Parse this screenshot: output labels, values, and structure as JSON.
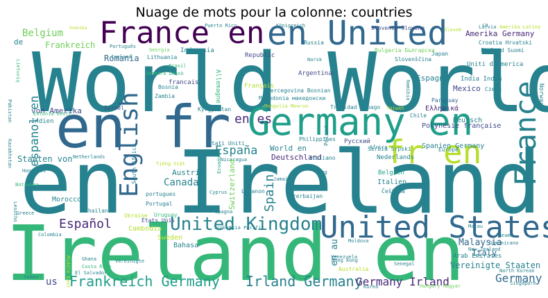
{
  "chart_data": {
    "type": "wordcloud",
    "title": "Nuage de mots pour la colonne: countries",
    "colors": [
      "#440154",
      "#482878",
      "#3e4989",
      "#31688e",
      "#26828e",
      "#1f9e89",
      "#35b779",
      "#6ece58",
      "#b5de2b",
      "#fde725"
    ],
    "words": [
      {
        "text": "World World",
        "rank": 1
      },
      {
        "text": "en Ireland",
        "rank": 2
      },
      {
        "text": "Ireland en",
        "rank": 3
      },
      {
        "text": "en fr",
        "rank": 4
      },
      {
        "text": "France en",
        "rank": 5
      },
      {
        "text": "en United",
        "rank": 6
      },
      {
        "text": "Germany en",
        "rank": 7
      },
      {
        "text": "United States",
        "rank": 8
      },
      {
        "text": "fr en",
        "rank": 9
      },
      {
        "text": "France",
        "rank": 10
      },
      {
        "text": "English",
        "rank": 11
      },
      {
        "text": "United Kingdom",
        "rank": 12
      },
      {
        "text": "Irland Germany",
        "rank": 13
      },
      {
        "text": "Frankreich Germany",
        "rank": 14
      },
      {
        "text": "Germany Irland",
        "rank": 15
      },
      {
        "text": "España",
        "rank": 16
      },
      {
        "text": "Español",
        "rank": 17
      },
      {
        "text": "Spain",
        "rank": 18
      },
      {
        "text": "en es",
        "rank": 19
      },
      {
        "text": "espanol en",
        "rank": 20
      },
      {
        "text": "Germany",
        "rank": 21
      },
      {
        "text": "Belgium",
        "rank": 22
      },
      {
        "text": "Canada",
        "rank": 23
      },
      {
        "text": "Malaysia",
        "rank": 24
      },
      {
        "text": "Vereinigte Staaten",
        "rank": 25
      },
      {
        "text": "Italy",
        "rank": 26
      },
      {
        "text": "Romania",
        "rank": 27
      },
      {
        "text": "Frankreich",
        "rank": 28
      },
      {
        "text": "Amerika Germany",
        "rank": 29
      },
      {
        "text": "Espagne",
        "rank": 30
      },
      {
        "text": "Deutschland",
        "rank": 31
      },
      {
        "text": "World en",
        "rank": 32
      },
      {
        "text": "Staaten von",
        "rank": 33
      },
      {
        "text": "von Amerika",
        "rank": 34
      },
      {
        "text": "en au",
        "rank": 35
      },
      {
        "text": "us",
        "rank": 36
      },
      {
        "text": "Austria",
        "rank": 37
      },
      {
        "text": "Mexico",
        "rank": 38
      },
      {
        "text": "Spanien Germany",
        "rank": 39
      },
      {
        "text": "Polynésie française",
        "rank": 40
      },
      {
        "text": "Morocco",
        "rank": 41
      },
      {
        "text": "Cambodia",
        "rank": 42
      },
      {
        "text": "Sweden",
        "rank": 43
      },
      {
        "text": "Bahasa",
        "rank": 44
      },
      {
        "text": "Italien",
        "rank": 45
      },
      {
        "text": "Nederlands",
        "rank": 46
      },
      {
        "text": "Belgien",
        "rank": 47
      },
      {
        "text": "Uniti d'America",
        "rank": 48
      },
      {
        "text": "India India",
        "rank": 49
      },
      {
        "text": "Ελληνικά",
        "rank": 50
      },
      {
        "text": "Indonesia",
        "rank": 51
      },
      {
        "text": "Republic",
        "rank": 52
      },
      {
        "text": "Argentina",
        "rank": 53
      },
      {
        "text": "Russia",
        "rank": 54
      },
      {
        "text": "Slovenia Slovene",
        "rank": 55
      },
      {
        "text": "Puerto Rico",
        "rank": 56
      },
      {
        "text": "francais",
        "rank": 57
      },
      {
        "text": "Français",
        "rank": 58
      },
      {
        "text": "Lithuania",
        "rank": 59
      },
      {
        "text": "Bosnia",
        "rank": 60
      },
      {
        "text": "Zambia",
        "rank": 61
      },
      {
        "text": "Israel",
        "rank": 62
      },
      {
        "text": "Indien",
        "rank": 63
      },
      {
        "text": "South Africa",
        "rank": 64
      },
      {
        "text": "Stati Uniti",
        "rank": 65
      },
      {
        "text": "Philippines",
        "rank": 66
      },
      {
        "text": "Italiano",
        "rank": 67
      },
      {
        "text": "Русский",
        "rank": 68
      },
      {
        "text": "Deutsch",
        "rank": 69
      },
      {
        "text": "Kyrgyzstan",
        "rank": 70
      },
      {
        "text": "Trinidad Tobago",
        "rank": 71
      },
      {
        "text": "Portugal",
        "rank": 72
      },
      {
        "text": "portugues",
        "rank": 73
      },
      {
        "text": "États Unis",
        "rank": 74
      },
      {
        "text": "Uruguay",
        "rank": 75
      },
      {
        "text": "Nicaragua",
        "rank": 76
      },
      {
        "text": "Ecuador",
        "rank": 77
      },
      {
        "text": "Switzerland",
        "rank": 78
      },
      {
        "text": "Lebanon",
        "rank": 79
      },
      {
        "text": "Azerbaijan",
        "rank": 80
      },
      {
        "text": "Cyprus",
        "rank": 81
      },
      {
        "text": "Thailand",
        "rank": 82
      },
      {
        "text": "Ukraine",
        "rank": 83
      },
      {
        "text": "Jamaica",
        "rank": 84
      },
      {
        "text": "Poland",
        "rank": 85
      },
      {
        "text": "Serbia Srpski",
        "rank": 86
      },
      {
        "text": "Europe",
        "rank": 87
      },
      {
        "text": "Chile",
        "rank": 88
      },
      {
        "text": "Paraguay",
        "rank": 89
      },
      {
        "text": "Norway",
        "rank": 90
      },
      {
        "text": "Czech",
        "rank": 91
      },
      {
        "text": "Finland Suomi",
        "rank": 92
      },
      {
        "text": "Croatia Hrvatski",
        "rank": 93
      },
      {
        "text": "Japan",
        "rank": 94
      },
      {
        "text": "Bulgaria Български",
        "rank": 95
      },
      {
        "text": "Slovenščina",
        "rank": 96
      },
      {
        "text": "Hercegovina Bosnian",
        "rank": 97
      },
      {
        "text": "Macedonia македонски",
        "rank": 98
      },
      {
        "text": "Mongolia Монгол",
        "rank": 99
      },
      {
        "text": "Allemagne",
        "rank": 100
      },
      {
        "text": "Denmark Dansk",
        "rank": 101
      },
      {
        "text": "Brasil",
        "rank": 102
      },
      {
        "text": "Georgia",
        "rank": 103
      },
      {
        "text": "Português",
        "rank": 104
      },
      {
        "text": "Iceland",
        "rank": 105
      },
      {
        "text": "Königreich",
        "rank": 106
      },
      {
        "text": "Norsk",
        "rank": 107
      },
      {
        "text": "Svenska",
        "rank": 108
      },
      {
        "text": "de",
        "rank": 109
      },
      {
        "text": "Lietuvių",
        "rank": 110
      },
      {
        "text": "Kazakhstan",
        "rank": 111
      },
      {
        "text": "Estonia Eesti",
        "rank": 112
      },
      {
        "text": "Honduras",
        "rank": 113
      },
      {
        "text": "Botswana",
        "rank": 114
      },
      {
        "text": "Greece",
        "rank": 115
      },
      {
        "text": "Colombia",
        "rank": 116
      },
      {
        "text": "Ghana",
        "rank": 117
      },
      {
        "text": "Costa Rica",
        "rank": 118
      },
      {
        "text": "El Salvador",
        "rank": 119
      },
      {
        "text": "Vereinigte",
        "rank": 120
      },
      {
        "text": "Turkey",
        "rank": 121
      },
      {
        "text": "Asia Pacific",
        "rank": 122
      },
      {
        "text": "Spagna",
        "rank": 123
      },
      {
        "text": "Moldova",
        "rank": 124
      },
      {
        "text": "Venezuela",
        "rank": 125
      },
      {
        "text": "Hong Kong",
        "rank": 126
      },
      {
        "text": "Senegal",
        "rank": 127
      },
      {
        "text": "Australia",
        "rank": 128
      },
      {
        "text": "Arab Emirates",
        "rank": 129
      },
      {
        "text": "New Zealand",
        "rank": 130
      },
      {
        "text": "Dominicana",
        "rank": 131
      },
      {
        "text": "Panama",
        "rank": 132
      },
      {
        "text": "Macau",
        "rank": 133
      },
      {
        "text": "North Korean",
        "rank": 134
      },
      {
        "text": "Singapore",
        "rank": 135
      },
      {
        "text": "Hungary Magyar",
        "rank": 136
      },
      {
        "text": "Korea",
        "rank": 137
      },
      {
        "text": "Africa",
        "rank": 138
      },
      {
        "text": "Čeština",
        "rank": 139
      },
      {
        "text": "Kong",
        "rank": 140
      },
      {
        "text": "Tiếng Việt",
        "rank": 141
      },
      {
        "text": "Middle East",
        "rank": 142
      },
      {
        "text": "Latvia",
        "rank": 143
      },
      {
        "text": "Namibia",
        "rank": 144
      },
      {
        "text": "Amerika Latina",
        "rank": 145
      },
      {
        "text": "ca",
        "rank": 146
      },
      {
        "text": "Slovak",
        "rank": 147
      },
      {
        "text": "Taiwan",
        "rank": 148
      },
      {
        "text": "Netherlands",
        "rank": 149
      },
      {
        "text": "Lesotho",
        "rank": 150
      },
      {
        "text": "Yemen",
        "rank": 151
      },
      {
        "text": "Pakistan",
        "rank": 152
      }
    ]
  }
}
